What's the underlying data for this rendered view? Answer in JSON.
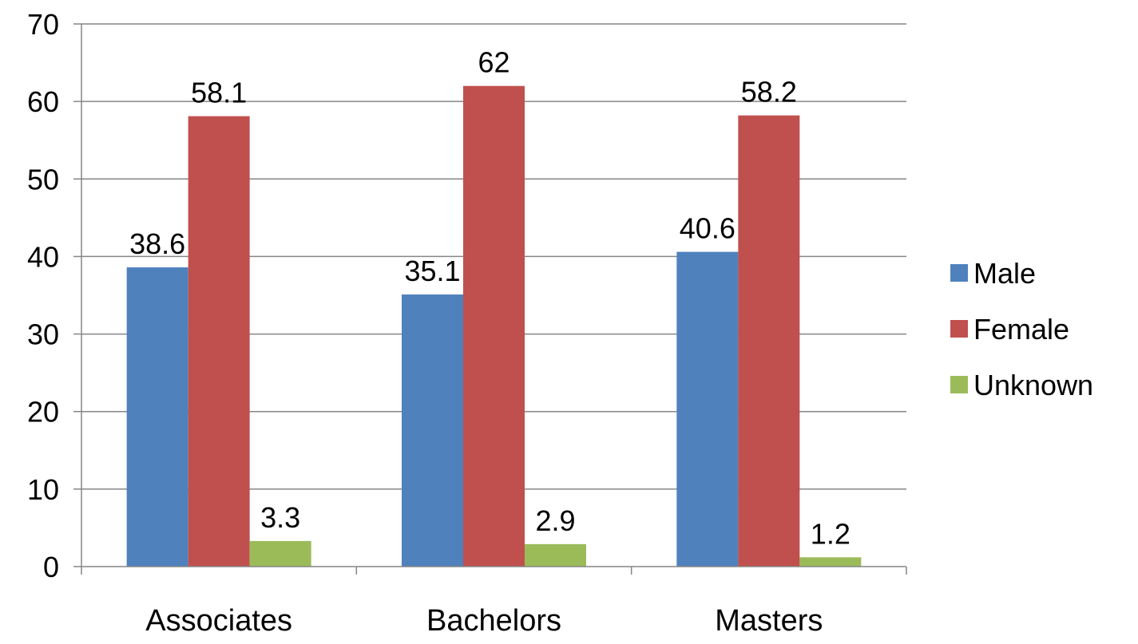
{
  "chart_data": {
    "type": "bar",
    "categories": [
      "Associates",
      "Bachelors",
      "Masters"
    ],
    "series": [
      {
        "name": "Male",
        "values": [
          38.6,
          35.1,
          40.6
        ],
        "color": "#4F81BD"
      },
      {
        "name": "Female",
        "values": [
          58.1,
          62,
          58.2
        ],
        "color": "#C0504D"
      },
      {
        "name": "Unknown",
        "values": [
          3.3,
          2.9,
          1.2
        ],
        "color": "#9BBB59"
      }
    ],
    "data_labels": [
      [
        "38.6",
        "35.1",
        "40.6"
      ],
      [
        "58.1",
        "62",
        "58.2"
      ],
      [
        "3.3",
        "2.9",
        "1.2"
      ]
    ],
    "ylim": [
      0,
      70
    ],
    "yticks": [
      "0",
      "10",
      "20",
      "30",
      "40",
      "50",
      "60",
      "70"
    ],
    "grid": true,
    "legend_position": "right",
    "title": "",
    "xlabel": "",
    "ylabel": ""
  }
}
